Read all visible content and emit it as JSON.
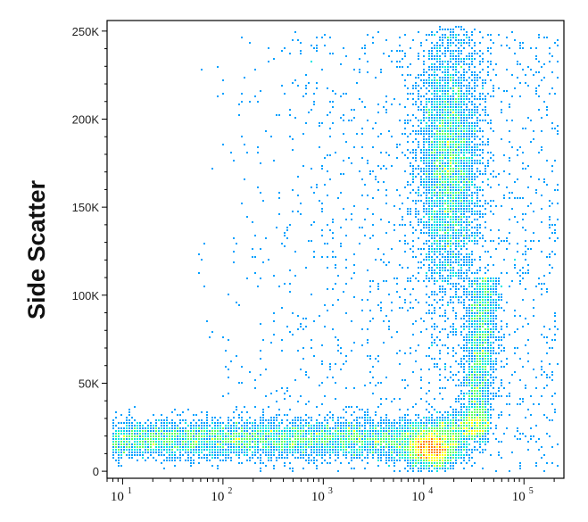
{
  "chart_data": {
    "type": "scatter",
    "subtype": "density-colored flow cytometry dot plot",
    "title": "",
    "xlabel": "",
    "ylabel": "Side Scatter",
    "x_scale": "log",
    "xlim": [
      7,
      250000
    ],
    "ylim": [
      -4000,
      256000
    ],
    "x_ticks": [
      {
        "value": 10,
        "base": "10",
        "exp": "1"
      },
      {
        "value": 100,
        "base": "10",
        "exp": "2"
      },
      {
        "value": 1000,
        "base": "10",
        "exp": "3"
      },
      {
        "value": 10000,
        "base": "10",
        "exp": "4"
      },
      {
        "value": 100000,
        "base": "10",
        "exp": "5"
      }
    ],
    "y_ticks": [
      {
        "value": 0,
        "label": "0"
      },
      {
        "value": 50000,
        "label": "50K"
      },
      {
        "value": 100000,
        "label": "100K"
      },
      {
        "value": 150000,
        "label": "150K"
      },
      {
        "value": 200000,
        "label": "200K"
      },
      {
        "value": 250000,
        "label": "250K"
      }
    ],
    "density_colors": [
      "#0000c8",
      "#00a0ff",
      "#00e8e0",
      "#60ff60",
      "#ffff00",
      "#ff8000"
    ],
    "populations": [
      {
        "name": "high side scatter cluster",
        "x_center": 18000,
        "y_center": 175000,
        "x_spread_log": 0.16,
        "y_spread": 40000,
        "weight": 0.27
      },
      {
        "name": "bright low side scatter cluster",
        "x_center": 12000,
        "y_center": 12000,
        "x_spread_log": 0.14,
        "y_spread": 5500,
        "weight": 0.13
      },
      {
        "name": "low side scatter band",
        "x_range": [
          8,
          45000
        ],
        "y_center": 18000,
        "y_spread": 6500,
        "weight": 0.38
      },
      {
        "name": "curved connecting band",
        "x_range": [
          15000,
          40000
        ],
        "y_range": [
          20000,
          110000
        ],
        "weight": 0.12
      },
      {
        "name": "sparse background events",
        "x_range": [
          50,
          220000
        ],
        "y_range": [
          0,
          250000
        ],
        "weight": 0.1
      }
    ]
  }
}
